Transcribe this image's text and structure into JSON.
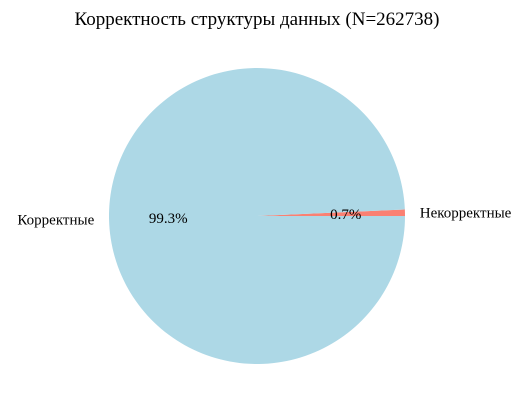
{
  "chart_data": {
    "type": "pie",
    "title": "Корректность структуры данных (N=262738)",
    "slices": [
      {
        "label": "Некорректные",
        "value": 0.7,
        "pct_label": "0.7%",
        "color": "#fa8072"
      },
      {
        "label": "Корректные",
        "value": 99.3,
        "pct_label": "99.3%",
        "color": "#add8e6"
      }
    ],
    "start_angle_deg": 0,
    "direction": "counterclockwise"
  }
}
